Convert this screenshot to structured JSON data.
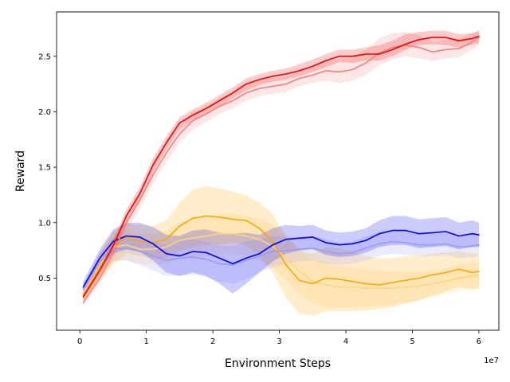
{
  "chart_data": {
    "type": "line",
    "title": "",
    "xlabel": "Environment Steps",
    "ylabel": "Reward",
    "x_offset_label": "1e7",
    "xlim": [
      -0.35,
      6.3
    ],
    "ylim": [
      0.03,
      2.9
    ],
    "xticks": [
      0,
      1,
      2,
      3,
      4,
      5,
      6
    ],
    "xtick_labels": [
      "0",
      "1",
      "2",
      "3",
      "4",
      "5",
      "6"
    ],
    "yticks": [
      0.5,
      1.0,
      1.5,
      2.0,
      2.5
    ],
    "ytick_labels": [
      "0.5",
      "1.0",
      "1.5",
      "2.0",
      "2.5"
    ],
    "grid": false,
    "legend": "none",
    "series": [
      {
        "name": "red",
        "color": "#ee0000",
        "style": "solid",
        "x": [
          0.05,
          0.3,
          0.5,
          0.7,
          0.9,
          1.1,
          1.3,
          1.5,
          1.7,
          1.9,
          2.1,
          2.3,
          2.5,
          2.7,
          2.9,
          3.1,
          3.3,
          3.5,
          3.7,
          3.9,
          4.1,
          4.3,
          4.5,
          4.7,
          4.9,
          5.1,
          5.3,
          5.5,
          5.7,
          5.9,
          6.0
        ],
        "y": [
          0.33,
          0.57,
          0.79,
          1.06,
          1.26,
          1.52,
          1.72,
          1.9,
          1.97,
          2.03,
          2.1,
          2.17,
          2.25,
          2.29,
          2.32,
          2.34,
          2.37,
          2.41,
          2.46,
          2.5,
          2.5,
          2.52,
          2.52,
          2.56,
          2.61,
          2.65,
          2.67,
          2.67,
          2.64,
          2.66,
          2.68
        ],
        "lower": [
          0.3,
          0.53,
          0.74,
          1.0,
          1.2,
          1.45,
          1.66,
          1.84,
          1.92,
          1.98,
          2.05,
          2.12,
          2.19,
          2.24,
          2.27,
          2.29,
          2.32,
          2.36,
          2.4,
          2.45,
          2.44,
          2.46,
          2.46,
          2.5,
          2.56,
          2.6,
          2.61,
          2.6,
          2.58,
          2.6,
          2.62
        ],
        "upper": [
          0.37,
          0.61,
          0.84,
          1.12,
          1.32,
          1.58,
          1.78,
          1.95,
          2.02,
          2.08,
          2.15,
          2.22,
          2.3,
          2.34,
          2.37,
          2.39,
          2.43,
          2.47,
          2.52,
          2.56,
          2.56,
          2.58,
          2.6,
          2.64,
          2.7,
          2.72,
          2.73,
          2.73,
          2.7,
          2.71,
          2.73
        ]
      },
      {
        "name": "light red",
        "color": "#f08080",
        "style": "solid",
        "x": [
          0.05,
          0.3,
          0.5,
          0.7,
          0.9,
          1.1,
          1.3,
          1.5,
          1.7,
          1.9,
          2.1,
          2.3,
          2.5,
          2.7,
          2.9,
          3.1,
          3.3,
          3.5,
          3.7,
          3.9,
          4.1,
          4.3,
          4.5,
          4.7,
          4.9,
          5.1,
          5.3,
          5.5,
          5.7,
          5.9,
          6.0
        ],
        "y": [
          0.28,
          0.5,
          0.72,
          1.0,
          1.2,
          1.43,
          1.63,
          1.8,
          1.92,
          1.98,
          2.05,
          2.1,
          2.17,
          2.21,
          2.23,
          2.25,
          2.3,
          2.33,
          2.37,
          2.36,
          2.38,
          2.44,
          2.53,
          2.58,
          2.6,
          2.58,
          2.54,
          2.56,
          2.57,
          2.63,
          2.67
        ],
        "lower": [
          0.25,
          0.45,
          0.66,
          0.92,
          1.12,
          1.35,
          1.55,
          1.72,
          1.84,
          1.91,
          1.98,
          2.03,
          2.1,
          2.14,
          2.16,
          2.18,
          2.23,
          2.26,
          2.28,
          2.26,
          2.28,
          2.33,
          2.42,
          2.47,
          2.5,
          2.48,
          2.46,
          2.48,
          2.49,
          2.56,
          2.6
        ],
        "upper": [
          0.31,
          0.55,
          0.78,
          1.08,
          1.28,
          1.51,
          1.71,
          1.88,
          2.0,
          2.05,
          2.12,
          2.17,
          2.24,
          2.28,
          2.3,
          2.32,
          2.37,
          2.4,
          2.46,
          2.47,
          2.5,
          2.56,
          2.66,
          2.71,
          2.72,
          2.69,
          2.63,
          2.65,
          2.66,
          2.71,
          2.73
        ]
      },
      {
        "name": "orange",
        "color": "#ffa500",
        "style": "solid",
        "x": [
          0.05,
          0.3,
          0.5,
          0.7,
          0.9,
          1.1,
          1.3,
          1.5,
          1.7,
          1.9,
          2.1,
          2.3,
          2.5,
          2.7,
          2.9,
          3.1,
          3.3,
          3.5,
          3.7,
          3.9,
          4.1,
          4.3,
          4.5,
          4.7,
          4.9,
          5.1,
          5.3,
          5.5,
          5.7,
          5.9,
          6.0
        ],
        "y": [
          0.34,
          0.6,
          0.78,
          0.87,
          0.83,
          0.82,
          0.85,
          0.97,
          1.04,
          1.06,
          1.05,
          1.03,
          1.02,
          0.95,
          0.83,
          0.62,
          0.48,
          0.45,
          0.5,
          0.49,
          0.47,
          0.45,
          0.44,
          0.46,
          0.48,
          0.5,
          0.53,
          0.55,
          0.58,
          0.55,
          0.56
        ],
        "lower": [
          0.3,
          0.48,
          0.62,
          0.72,
          0.7,
          0.68,
          0.68,
          0.75,
          0.78,
          0.8,
          0.8,
          0.82,
          0.8,
          0.7,
          0.55,
          0.32,
          0.18,
          0.16,
          0.2,
          0.2,
          0.2,
          0.21,
          0.22,
          0.24,
          0.27,
          0.3,
          0.34,
          0.38,
          0.42,
          0.4,
          0.41
        ],
        "upper": [
          0.39,
          0.72,
          0.92,
          0.99,
          0.98,
          0.97,
          1.02,
          1.18,
          1.3,
          1.33,
          1.31,
          1.28,
          1.25,
          1.18,
          1.08,
          0.88,
          0.75,
          0.72,
          0.78,
          0.77,
          0.74,
          0.7,
          0.68,
          0.68,
          0.7,
          0.7,
          0.72,
          0.73,
          0.75,
          0.72,
          0.72
        ]
      },
      {
        "name": "light orange",
        "color": "#ffd47a",
        "style": "solid",
        "x": [
          0.05,
          0.3,
          0.5,
          0.7,
          0.9,
          1.1,
          1.3,
          1.5,
          1.7,
          1.9,
          2.1,
          2.3,
          2.5,
          2.7,
          2.9,
          3.1,
          3.3,
          3.5,
          3.7,
          3.9,
          4.1,
          4.3,
          4.5,
          4.7,
          4.9,
          5.1,
          5.3,
          5.5,
          5.7,
          5.9,
          6.0
        ],
        "y": [
          0.35,
          0.62,
          0.78,
          0.8,
          0.76,
          0.76,
          0.78,
          0.84,
          0.86,
          0.88,
          0.9,
          0.9,
          0.88,
          0.85,
          0.79,
          0.68,
          0.56,
          0.47,
          0.44,
          0.42,
          0.42,
          0.41,
          0.41,
          0.41,
          0.42,
          0.43,
          0.45,
          0.47,
          0.5,
          0.52,
          0.52
        ],
        "lower": [
          0.31,
          0.52,
          0.65,
          0.66,
          0.63,
          0.62,
          0.63,
          0.68,
          0.69,
          0.7,
          0.72,
          0.72,
          0.7,
          0.66,
          0.6,
          0.48,
          0.35,
          0.27,
          0.24,
          0.23,
          0.24,
          0.24,
          0.25,
          0.26,
          0.28,
          0.3,
          0.33,
          0.35,
          0.38,
          0.4,
          0.4
        ],
        "upper": [
          0.39,
          0.72,
          0.91,
          0.94,
          0.9,
          0.9,
          0.93,
          1.0,
          1.03,
          1.06,
          1.08,
          1.08,
          1.06,
          1.04,
          0.98,
          0.88,
          0.77,
          0.67,
          0.64,
          0.61,
          0.6,
          0.58,
          0.57,
          0.56,
          0.56,
          0.56,
          0.57,
          0.59,
          0.62,
          0.64,
          0.64
        ]
      },
      {
        "name": "blue",
        "color": "#0000ee",
        "style": "solid",
        "x": [
          0.05,
          0.3,
          0.5,
          0.7,
          0.9,
          1.1,
          1.3,
          1.5,
          1.7,
          1.9,
          2.1,
          2.3,
          2.5,
          2.7,
          2.9,
          3.1,
          3.3,
          3.5,
          3.7,
          3.9,
          4.1,
          4.3,
          4.5,
          4.7,
          4.9,
          5.1,
          5.3,
          5.5,
          5.7,
          5.9,
          6.0
        ],
        "y": [
          0.42,
          0.68,
          0.83,
          0.88,
          0.87,
          0.81,
          0.72,
          0.7,
          0.74,
          0.73,
          0.68,
          0.63,
          0.68,
          0.72,
          0.8,
          0.85,
          0.86,
          0.87,
          0.82,
          0.8,
          0.81,
          0.84,
          0.9,
          0.93,
          0.93,
          0.9,
          0.91,
          0.92,
          0.88,
          0.9,
          0.89
        ],
        "lower": [
          0.38,
          0.6,
          0.72,
          0.76,
          0.74,
          0.66,
          0.55,
          0.52,
          0.55,
          0.52,
          0.45,
          0.36,
          0.45,
          0.55,
          0.65,
          0.72,
          0.75,
          0.76,
          0.71,
          0.69,
          0.7,
          0.73,
          0.78,
          0.8,
          0.8,
          0.77,
          0.78,
          0.79,
          0.76,
          0.78,
          0.78
        ],
        "upper": [
          0.47,
          0.76,
          0.94,
          1.0,
          1.0,
          0.96,
          0.89,
          0.88,
          0.93,
          0.94,
          0.91,
          0.9,
          0.91,
          0.89,
          0.95,
          0.98,
          0.97,
          0.98,
          0.93,
          0.91,
          0.92,
          0.95,
          1.02,
          1.06,
          1.06,
          1.03,
          1.04,
          1.05,
          1.0,
          1.02,
          1.0
        ]
      },
      {
        "name": "light blue",
        "color": "#9a9af5",
        "style": "solid",
        "x": [
          0.05,
          0.3,
          0.5,
          0.7,
          0.9,
          1.1,
          1.3,
          1.5,
          1.7,
          1.9,
          2.1,
          2.3,
          2.5,
          2.7,
          2.9,
          3.1,
          3.3,
          3.5,
          3.7,
          3.9,
          4.1,
          4.3,
          4.5,
          4.7,
          4.9,
          5.1,
          5.3,
          5.5,
          5.7,
          5.9,
          6.0
        ],
        "y": [
          0.4,
          0.65,
          0.76,
          0.77,
          0.74,
          0.7,
          0.66,
          0.68,
          0.69,
          0.67,
          0.63,
          0.62,
          0.66,
          0.7,
          0.74,
          0.75,
          0.76,
          0.77,
          0.74,
          0.72,
          0.73,
          0.77,
          0.81,
          0.83,
          0.82,
          0.8,
          0.8,
          0.81,
          0.78,
          0.79,
          0.8
        ],
        "lower": [
          0.36,
          0.57,
          0.66,
          0.66,
          0.62,
          0.57,
          0.52,
          0.52,
          0.53,
          0.51,
          0.47,
          0.45,
          0.49,
          0.55,
          0.6,
          0.63,
          0.65,
          0.66,
          0.63,
          0.62,
          0.63,
          0.66,
          0.7,
          0.72,
          0.71,
          0.7,
          0.7,
          0.71,
          0.68,
          0.69,
          0.7
        ],
        "upper": [
          0.44,
          0.73,
          0.86,
          0.88,
          0.86,
          0.83,
          0.8,
          0.84,
          0.85,
          0.83,
          0.79,
          0.79,
          0.83,
          0.85,
          0.88,
          0.87,
          0.87,
          0.88,
          0.85,
          0.82,
          0.83,
          0.88,
          0.92,
          0.94,
          0.93,
          0.9,
          0.9,
          0.91,
          0.88,
          0.89,
          0.9
        ]
      }
    ],
    "draw_order": [
      "light orange",
      "orange",
      "light blue",
      "blue",
      "light red",
      "red"
    ]
  }
}
